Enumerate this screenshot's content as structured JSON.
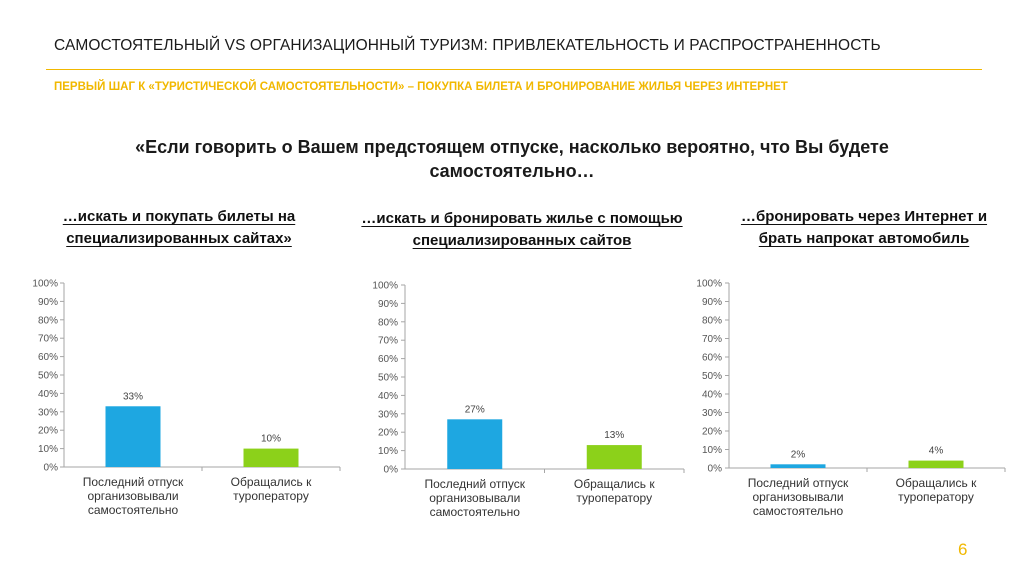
{
  "header": {
    "title": "САМОСТОЯТЕЛЬНЫЙ VS ОРГАНИЗАЦИОННЫЙ ТУРИЗМ: ПРИВЛЕКАТЕЛЬНОСТЬ И РАСПРОСТРАНЕННОСТЬ",
    "subtitle": "ПЕРВЫЙ ШАГ К «ТУРИСТИЧЕСКОЙ САМОСТОЯТЕЛЬНОСТИ» – ПОКУПКА БИЛЕТА И БРОНИРОВАНИЕ ЖИЛЬЯ ЧЕРЕЗ ИНТЕРНЕТ"
  },
  "question": {
    "line1": "«Если говорить о Вашем предстоящем отпуске, насколько вероятно, что Вы будете",
    "line2": "самостоятельно…"
  },
  "page_number": "6",
  "colors": {
    "accent": "#f1b800",
    "series_blue": "#1ea7e1",
    "series_green": "#8cd11a"
  },
  "chart_data": [
    {
      "type": "bar",
      "title_lines": [
        "…искать и покупать билеты на",
        "специализированных сайтах»"
      ],
      "categories": [
        [
          "Последний отпуск",
          "организовывали",
          "самостоятельно"
        ],
        [
          "Обращались к",
          "туроператору"
        ]
      ],
      "values": [
        33,
        10
      ],
      "value_labels": [
        "33%",
        "10%"
      ],
      "yticks": [
        "0%",
        "10%",
        "20%",
        "30%",
        "40%",
        "50%",
        "60%",
        "70%",
        "80%",
        "90%",
        "100%"
      ],
      "ylim": [
        0,
        100
      ],
      "grid": false,
      "bar_colors": [
        "#1ea7e1",
        "#8cd11a"
      ]
    },
    {
      "type": "bar",
      "title_lines": [
        "…искать и бронировать жилье с помощью",
        "специализированных сайтов"
      ],
      "categories": [
        [
          "Последний отпуск",
          "организовывали",
          "самостоятельно"
        ],
        [
          "Обращались к",
          "туроператору"
        ]
      ],
      "values": [
        27,
        13
      ],
      "value_labels": [
        "27%",
        "13%"
      ],
      "yticks": [
        "0%",
        "10%",
        "20%",
        "30%",
        "40%",
        "50%",
        "60%",
        "70%",
        "80%",
        "90%",
        "100%"
      ],
      "ylim": [
        0,
        100
      ],
      "grid": false,
      "bar_colors": [
        "#1ea7e1",
        "#8cd11a"
      ]
    },
    {
      "type": "bar",
      "title_lines": [
        "…бронировать через Интернет и",
        "брать напрокат автомобиль"
      ],
      "categories": [
        [
          "Последний отпуск",
          "организовывали",
          "самостоятельно"
        ],
        [
          "Обращались к",
          "туроператору"
        ]
      ],
      "values": [
        2,
        4
      ],
      "value_labels": [
        "2%",
        "4%"
      ],
      "yticks": [
        "0%",
        "10%",
        "20%",
        "30%",
        "40%",
        "50%",
        "60%",
        "70%",
        "80%",
        "90%",
        "100%"
      ],
      "ylim": [
        0,
        100
      ],
      "grid": false,
      "bar_colors": [
        "#1ea7e1",
        "#8cd11a"
      ]
    }
  ]
}
